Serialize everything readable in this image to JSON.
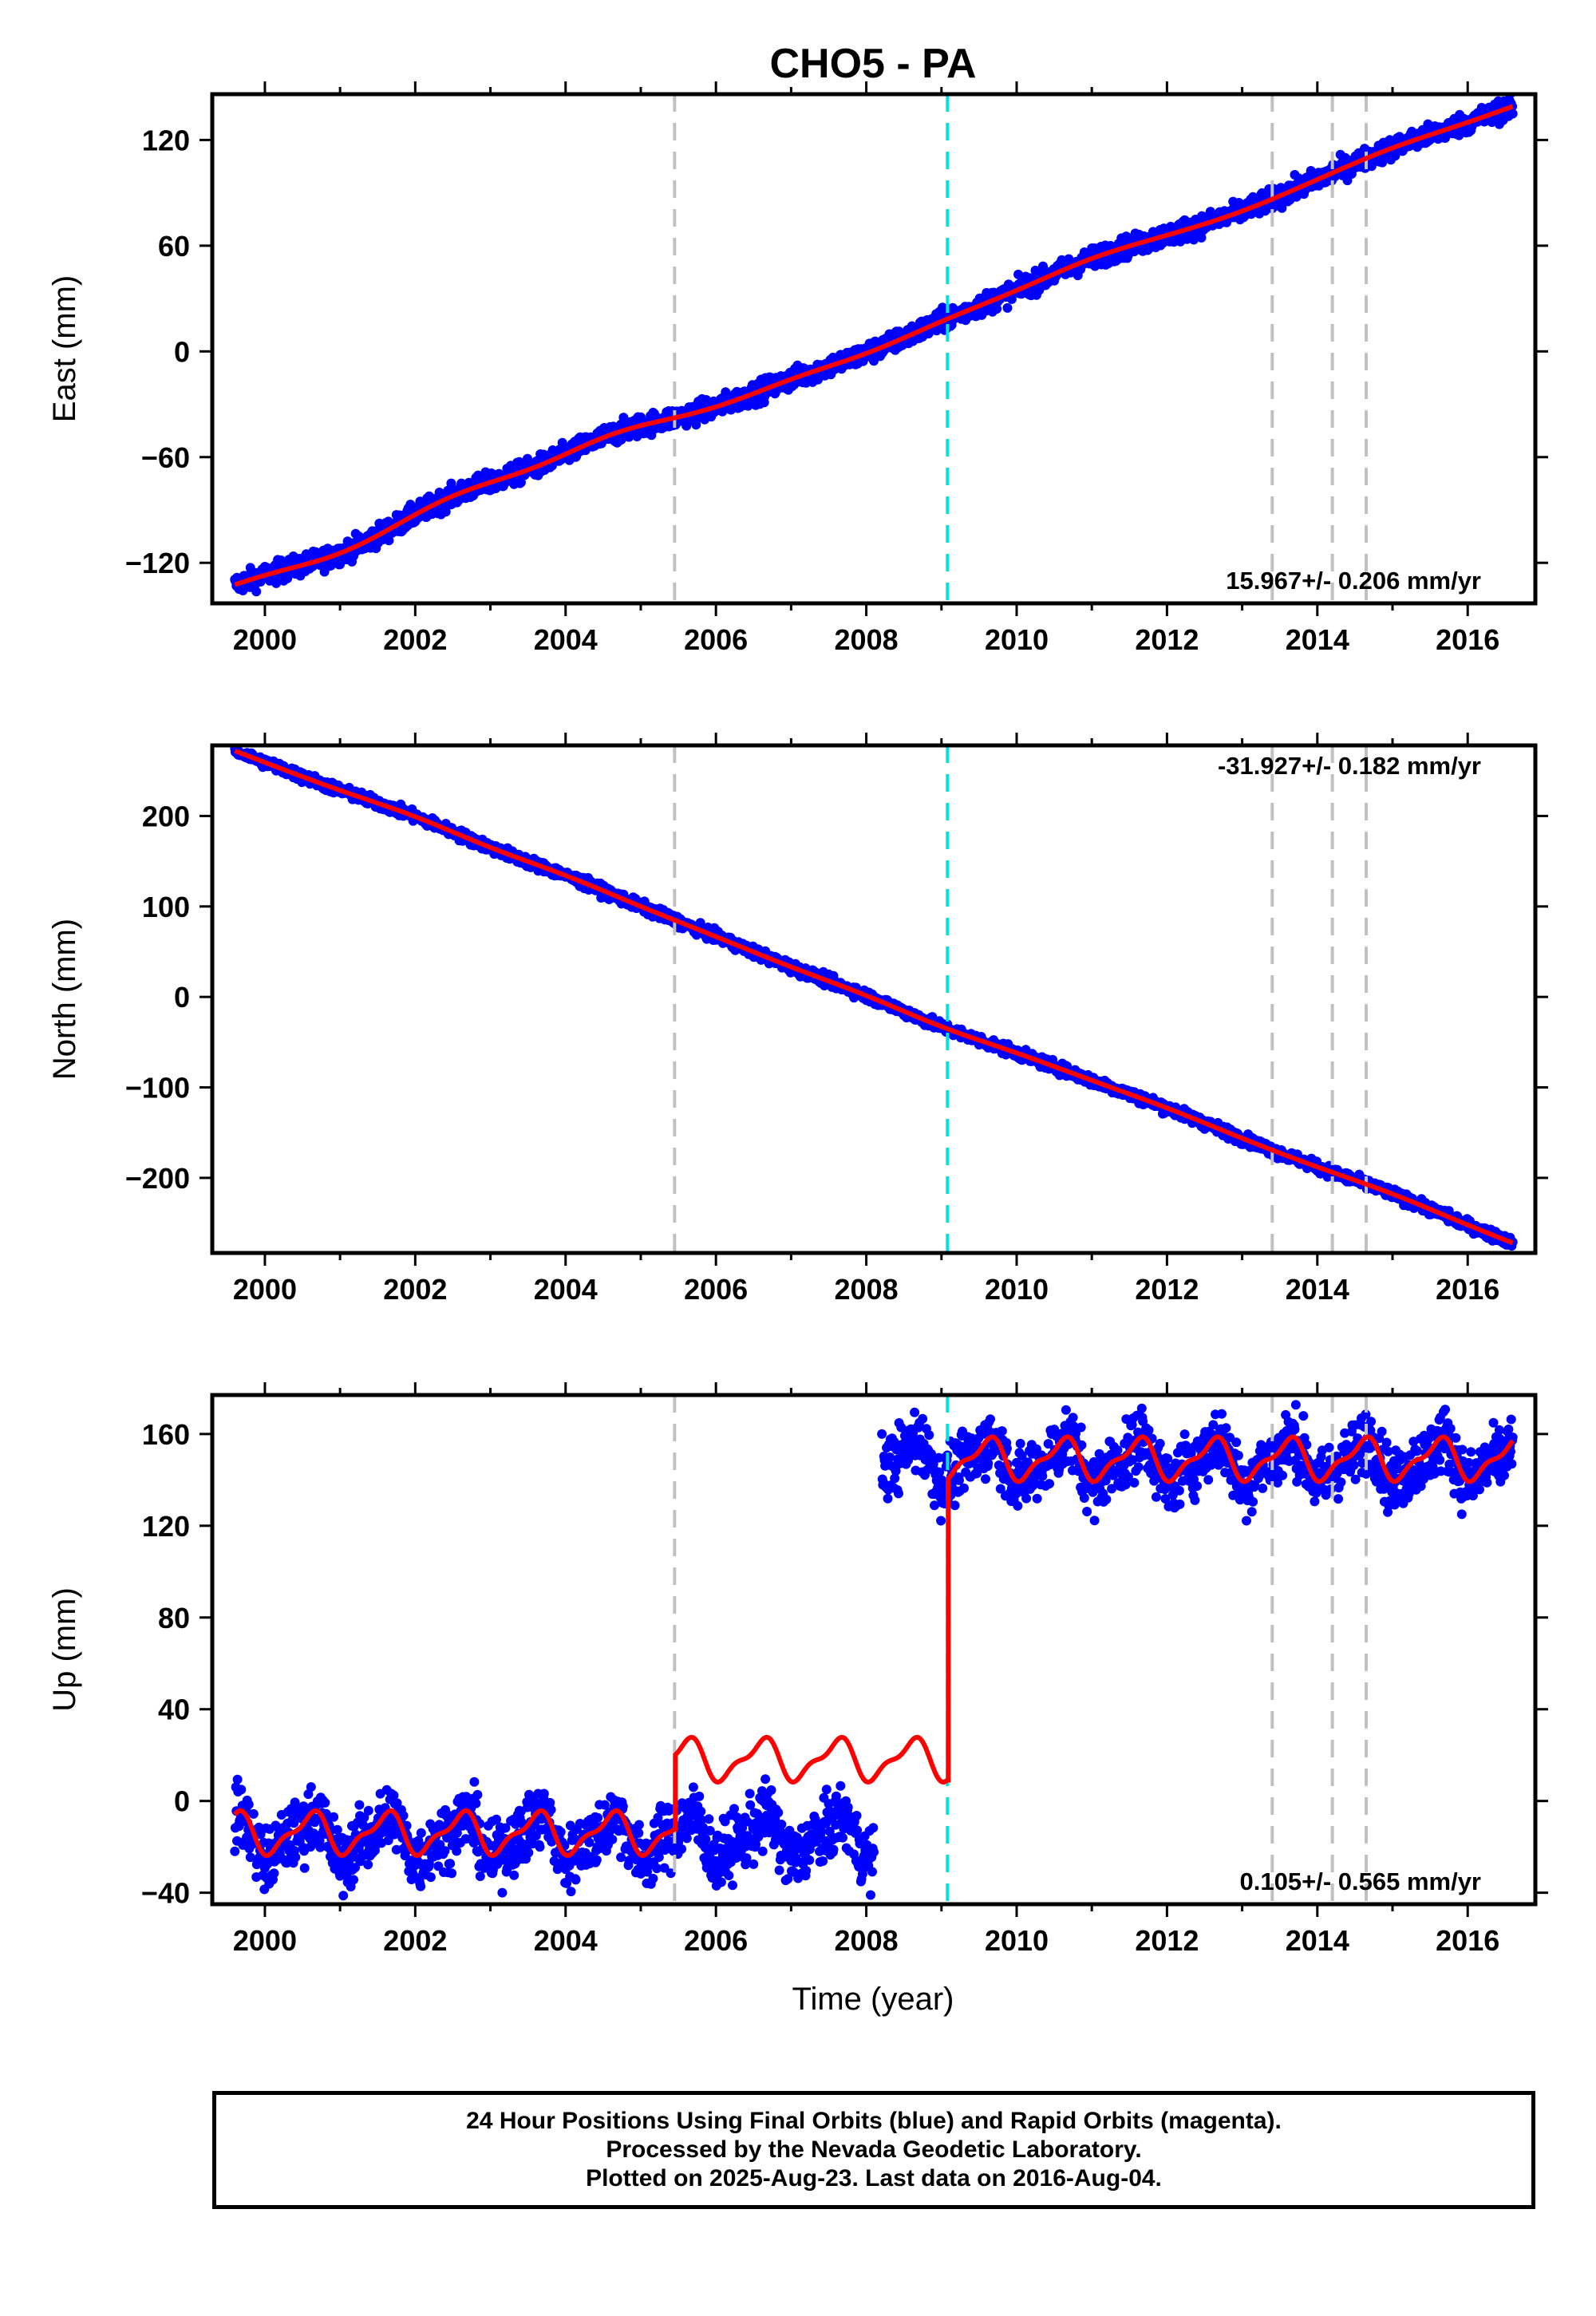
{
  "title": "CHO5 - PA",
  "xlabel": "Time (year)",
  "colors": {
    "final_orbits": "#0000ff",
    "rapid_orbits": "#ff00ff",
    "model": "#ff0000",
    "equipment_change": "#c0c0c0",
    "earthquake": "#00e0e0"
  },
  "footer": {
    "line1": "24 Hour Positions Using Final Orbits (blue) and Rapid Orbits (magenta).",
    "line2": "Processed by the Nevada Geodetic Laboratory.",
    "line3": "Plotted on 2025-Aug-23. Last data on 2016-Aug-04."
  },
  "chart_data": [
    {
      "type": "scatter",
      "component": "east",
      "ylabel": "East (mm)",
      "xlim": [
        1999.3,
        2016.9
      ],
      "ylim": [
        -143,
        146
      ],
      "x_ticks": [
        2000,
        2002,
        2004,
        2006,
        2008,
        2010,
        2012,
        2014,
        2016
      ],
      "y_ticks": [
        -120,
        -60,
        0,
        60,
        120
      ],
      "rate_label": "15.967+/- 0.206 mm/yr",
      "rate_label_position": "bottom-right",
      "data_range": [
        1999.6,
        2016.6
      ],
      "trend": {
        "start": [
          1999.6,
          -132
        ],
        "end": [
          2016.6,
          139
        ]
      },
      "wiggles": [
        [
          2001.0,
          -5
        ],
        [
          2002.6,
          4
        ],
        [
          2004.6,
          5
        ],
        [
          2006.2,
          -2
        ],
        [
          2008.0,
          -3
        ],
        [
          2011.0,
          3
        ],
        [
          2013.0,
          -2
        ],
        [
          2015.0,
          2
        ]
      ],
      "scatter_spread_mm": 3,
      "model_offsets": [],
      "seasonal_amplitude_mm": 0
    },
    {
      "type": "scatter",
      "component": "north",
      "ylabel": "North (mm)",
      "xlim": [
        1999.3,
        2016.9
      ],
      "ylim": [
        -283,
        278
      ],
      "x_ticks": [
        2000,
        2002,
        2004,
        2006,
        2008,
        2010,
        2012,
        2014,
        2016
      ],
      "y_ticks": [
        -200,
        -100,
        0,
        100,
        200
      ],
      "rate_label": "-31.927+/- 0.182 mm/yr",
      "rate_label_position": "top-right",
      "data_range": [
        1999.6,
        2016.6
      ],
      "trend": {
        "start": [
          1999.6,
          272
        ],
        "end": [
          2016.6,
          -272
        ]
      },
      "wiggles": [
        [
          2002.0,
          4
        ],
        [
          2004.0,
          3
        ],
        [
          2007.0,
          -2
        ],
        [
          2009.0,
          -4
        ],
        [
          2012.0,
          2
        ],
        [
          2015.0,
          3
        ]
      ],
      "scatter_spread_mm": 3,
      "model_offsets": [],
      "seasonal_amplitude_mm": 0
    },
    {
      "type": "scatter",
      "component": "up",
      "ylabel": "Up (mm)",
      "xlim": [
        1999.3,
        2016.9
      ],
      "ylim": [
        -45,
        177
      ],
      "x_ticks": [
        2000,
        2002,
        2004,
        2006,
        2008,
        2010,
        2012,
        2014,
        2016
      ],
      "y_ticks": [
        -40,
        0,
        40,
        80,
        120,
        160
      ],
      "rate_label": "0.105+/- 0.565 mm/yr",
      "rate_label_position": "bottom-right",
      "data_segments": [
        {
          "start": 1999.6,
          "end": 2008.1,
          "base": -16
        },
        {
          "start": 2008.2,
          "end": 2016.6,
          "base": 148
        }
      ],
      "scatter_spread_mm": 7,
      "model_segments": [
        {
          "start": 1999.6,
          "end": 2005.45,
          "base": -14
        },
        {
          "start": 2005.45,
          "end": 2009.08,
          "base": 18
        },
        {
          "start": 2009.08,
          "end": 2016.6,
          "base": 149
        }
      ],
      "seasonal_amplitude_mm": 9
    }
  ],
  "equipment_changes": [
    2005.45,
    2013.4,
    2014.2,
    2014.65
  ],
  "earthquakes": [
    2009.08
  ]
}
